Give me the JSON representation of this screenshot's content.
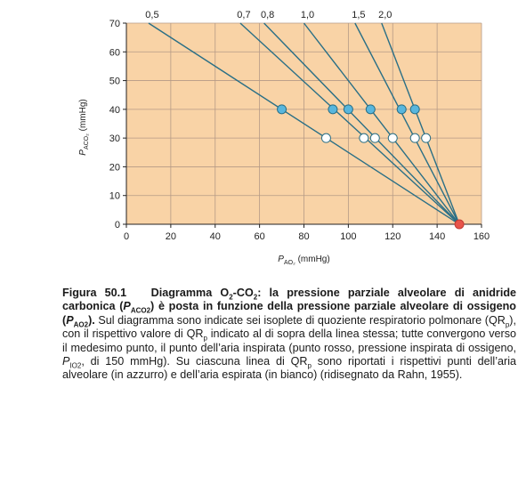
{
  "chart_data": {
    "type": "line",
    "xlabel": "P",
    "xlabel_sub": "AO₂",
    "xlabel_unit": "(mmHg)",
    "ylabel": "P",
    "ylabel_sub": "ACO₂",
    "ylabel_unit": "(mmHg)",
    "xlim": [
      0,
      160
    ],
    "ylim": [
      0,
      70
    ],
    "xticks": [
      0,
      20,
      40,
      60,
      80,
      100,
      120,
      140,
      160
    ],
    "yticks": [
      0,
      10,
      20,
      30,
      40,
      50,
      60,
      70
    ],
    "grid": true,
    "background": "#f9d3a6",
    "line_color": "#2a6f86",
    "inspired_point": {
      "x": 150,
      "y": 0,
      "color": "#e8544a"
    },
    "series": [
      {
        "name": "0,5",
        "end": {
          "x": 10,
          "y": 70
        },
        "alveolar": {
          "x": 70,
          "y": 40
        },
        "expired": {
          "x": 90,
          "y": 30
        }
      },
      {
        "name": "0,7",
        "end": {
          "x": 51.3,
          "y": 70
        },
        "alveolar": {
          "x": 93,
          "y": 40
        },
        "expired": {
          "x": 107,
          "y": 30
        }
      },
      {
        "name": "0,8",
        "end": {
          "x": 62,
          "y": 70
        },
        "alveolar": {
          "x": 100,
          "y": 40
        },
        "expired": {
          "x": 112,
          "y": 30
        }
      },
      {
        "name": "1,0",
        "end": {
          "x": 80,
          "y": 70
        },
        "alveolar": {
          "x": 110,
          "y": 40
        },
        "expired": {
          "x": 120,
          "y": 30
        }
      },
      {
        "name": "1,5",
        "end": {
          "x": 103,
          "y": 70
        },
        "alveolar": {
          "x": 124,
          "y": 40
        },
        "expired": {
          "x": 130,
          "y": 30
        }
      },
      {
        "name": "2,0",
        "end": {
          "x": 115,
          "y": 70
        },
        "alveolar": {
          "x": 130,
          "y": 40
        },
        "expired": {
          "x": 135,
          "y": 30
        }
      }
    ],
    "alveolar_color": "#58b6dd",
    "expired_color": "#ffffff"
  },
  "caption": {
    "label": "Figura 50.1",
    "title_1": "Diagramma O",
    "title_1_sub": "2",
    "title_2": "-CO",
    "title_2_sub": "2",
    "title_3": ": la pressione parziale alveolare di anidride carbonica (",
    "title_3_var": "P",
    "title_3_sub": "ACO2",
    "title_4": ") è posta in funzione della pressione parziale alveolare di ossigeno (",
    "title_4_var": "P",
    "title_4_sub": "AO2",
    "title_5": ").",
    "body_1": " Sul diagramma sono indicate sei isoplete di quoziente respiratorio polmonare (QR",
    "body_1_sub": "p",
    "body_2": "), con il rispettivo valore di QR",
    "body_2_sub": "p",
    "body_3": " indicato al di sopra della linea stessa; tutte convergono verso il medesimo punto, il punto dell’aria inspirata (punto rosso, pressione inspirata di ossigeno, ",
    "body_3_var": "P",
    "body_3_sub": "IO2",
    "body_4": ", di 150 mmHg). Su ciascuna linea di QR",
    "body_4_sub": "p",
    "body_5": " sono riportati i rispettivi punti dell’aria alveolare (in azzurro) e dell’aria espirata (in bianco) (ridisegnato da Rahn, 1955)."
  }
}
